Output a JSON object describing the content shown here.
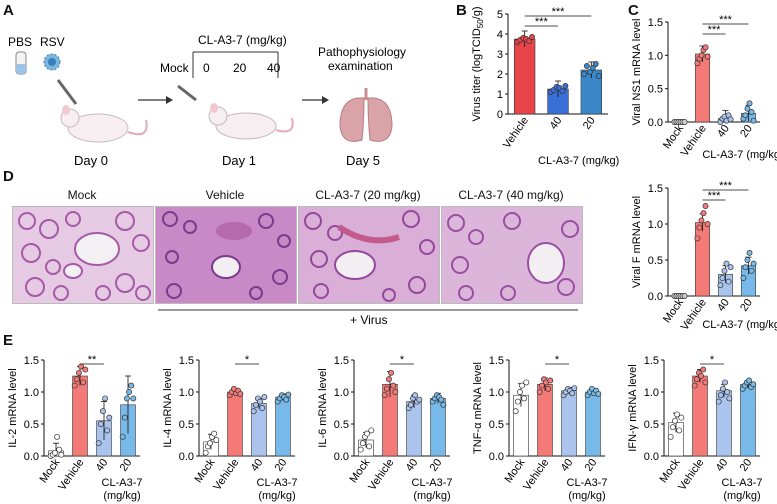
{
  "panels": {
    "A": "A",
    "B": "B",
    "C": "C",
    "D": "D",
    "E": "E"
  },
  "schematic": {
    "pbs": "PBS",
    "rsv": "RSV",
    "drug_dose": "CL-A3-7 (mg/kg)",
    "mock": "Mock",
    "dose_ticks": [
      "0",
      "20",
      "40"
    ],
    "exam": "Pathophysiology",
    "exam2": "examination",
    "day0": "Day 0",
    "day1": "Day 1",
    "day5": "Day 5"
  },
  "histology": {
    "titles": [
      "Mock",
      "Vehicle",
      "CL-A3-7 (20 mg/kg)",
      "CL-A3-7 (40 mg/kg)"
    ],
    "virus_label": "+ Virus"
  },
  "chart_data": [
    {
      "id": "B",
      "type": "bar",
      "categories": [
        "Vehicle",
        "40",
        "20"
      ],
      "xlabel": "CL-A3-7 (mg/kg)",
      "ylabel_main": "Virus titer (logTCID",
      "ylabel_sub": "50",
      "ylabel_end": "/g)",
      "ylim": [
        0,
        5
      ],
      "yticks": [
        "0",
        "1",
        "2",
        "3",
        "4",
        "5"
      ],
      "values": [
        3.75,
        1.25,
        2.2
      ],
      "points": [
        [
          3.6,
          3.7,
          3.8,
          3.75,
          3.65,
          3.85
        ],
        [
          1.1,
          1.2,
          1.35,
          1.3,
          1.15,
          1.4
        ],
        [
          2.0,
          2.4,
          2.1,
          2.3,
          2.5,
          1.9
        ]
      ],
      "colors": [
        "#e8454a",
        "#3b6fd8",
        "#3b88c8"
      ],
      "sig": [
        {
          "from": 0,
          "to": 1,
          "label": "***"
        },
        {
          "from": 0,
          "to": 2,
          "label": "***"
        }
      ]
    },
    {
      "id": "C",
      "type": "bar",
      "categories": [
        "Mock",
        "Vehicle",
        "40",
        "20"
      ],
      "xlabel": "CL-A3-7 (mg/kg)",
      "ylabel": "Viral NS1 mRNA level",
      "ylim": [
        0,
        1.5
      ],
      "yticks": [
        "0.0",
        "0.5",
        "1.0",
        "1.5"
      ],
      "values": [
        0.0,
        1.02,
        0.05,
        0.13
      ],
      "points": [
        [
          0,
          0,
          0,
          0,
          0,
          0
        ],
        [
          0.88,
          0.95,
          1.0,
          1.08,
          1.12,
          0.98
        ],
        [
          0.0,
          0.05,
          0.08,
          0.02,
          0.1,
          0.04
        ],
        [
          0.05,
          0.1,
          0.2,
          0.28,
          0.15,
          0.02
        ]
      ],
      "colors": [
        "#cccccc",
        "#f47a78",
        "#aac4ee",
        "#77b9e8"
      ],
      "sig": [
        {
          "from": 1,
          "to": 2,
          "label": "***"
        },
        {
          "from": 1,
          "to": 3,
          "label": "***"
        }
      ]
    },
    {
      "id": "Cb",
      "type": "bar",
      "categories": [
        "Mock",
        "Vehicle",
        "40",
        "20"
      ],
      "xlabel": "CL-A3-7 (mg/kg)",
      "ylabel": "Viral F mRNA level",
      "ylim": [
        0,
        1.5
      ],
      "yticks": [
        "0.0",
        "0.5",
        "1.0",
        "1.5"
      ],
      "values": [
        0.0,
        1.02,
        0.3,
        0.42
      ],
      "points": [
        [
          0,
          0,
          0,
          0,
          0,
          0
        ],
        [
          0.8,
          0.95,
          1.05,
          1.15,
          1.25,
          1.0
        ],
        [
          0.15,
          0.25,
          0.35,
          0.45,
          0.2,
          0.4
        ],
        [
          0.25,
          0.4,
          0.5,
          0.6,
          0.35,
          0.45
        ]
      ],
      "colors": [
        "#cccccc",
        "#f47a78",
        "#aac4ee",
        "#77b9e8"
      ],
      "sig": [
        {
          "from": 1,
          "to": 2,
          "label": "***"
        },
        {
          "from": 1,
          "to": 3,
          "label": "***"
        }
      ]
    },
    {
      "id": "E1",
      "type": "bar",
      "categories": [
        "Mock",
        "Vehicle",
        "40",
        "20"
      ],
      "xlabel": "CL-A3-7",
      "xlabel2": "(mg/kg)",
      "ylabel": "IL-2 mRNA level",
      "ylim": [
        0,
        1.5
      ],
      "yticks": [
        "0.0",
        "0.5",
        "1.0",
        "1.5"
      ],
      "values": [
        0.08,
        1.25,
        0.55,
        0.8
      ],
      "errors": [
        0.12,
        0.15,
        0.3,
        0.45
      ],
      "points": [
        [
          0.0,
          0.02,
          0.05,
          0.3,
          0.1,
          0.02
        ],
        [
          1.1,
          1.2,
          1.3,
          1.4,
          1.15,
          1.35
        ],
        [
          0.2,
          0.5,
          0.7,
          0.9,
          0.4,
          0.6
        ],
        [
          0.3,
          0.6,
          0.9,
          1.0,
          1.1,
          0.9
        ]
      ],
      "colors": [
        "#ffffff",
        "#f47a78",
        "#aac4ee",
        "#77b9e8"
      ],
      "sig": [
        {
          "from": 1,
          "to": 2,
          "label": "**"
        }
      ]
    },
    {
      "id": "E2",
      "type": "bar",
      "categories": [
        "Mock",
        "Vehicle",
        "40",
        "20"
      ],
      "xlabel": "CL-A3-7",
      "xlabel2": "(mg/kg)",
      "ylabel": "IL-4 mRNA level",
      "ylim": [
        0,
        1.5
      ],
      "yticks": [
        "0.0",
        "0.5",
        "1.0",
        "1.5"
      ],
      "values": [
        0.22,
        1.0,
        0.82,
        0.92
      ],
      "errors": [
        0.12,
        0.05,
        0.08,
        0.05
      ],
      "points": [
        [
          0.05,
          0.15,
          0.2,
          0.3,
          0.35,
          0.25
        ],
        [
          0.95,
          1.0,
          1.05,
          0.98,
          1.02,
          0.97
        ],
        [
          0.7,
          0.8,
          0.9,
          0.85,
          0.75,
          0.92
        ],
        [
          0.85,
          0.9,
          0.95,
          0.92,
          0.88,
          0.96
        ]
      ],
      "colors": [
        "#ffffff",
        "#f47a78",
        "#aac4ee",
        "#77b9e8"
      ],
      "sig": [
        {
          "from": 1,
          "to": 2,
          "label": "*"
        }
      ]
    },
    {
      "id": "E3",
      "type": "bar",
      "categories": [
        "Mock",
        "Vehicle",
        "40",
        "20"
      ],
      "xlabel": "CL-A3-7",
      "xlabel2": "(mg/kg)",
      "ylabel": "IL-6 mRNA level",
      "ylim": [
        0,
        1.5
      ],
      "yticks": [
        "0.0",
        "0.5",
        "1.0",
        "1.5"
      ],
      "values": [
        0.25,
        1.12,
        0.85,
        0.9
      ],
      "errors": [
        0.12,
        0.2,
        0.1,
        0.08
      ],
      "points": [
        [
          0.1,
          0.2,
          0.3,
          0.35,
          0.15,
          0.4
        ],
        [
          0.95,
          1.05,
          1.2,
          1.3,
          1.1,
          1.0
        ],
        [
          0.75,
          0.8,
          0.9,
          0.95,
          0.85,
          0.88
        ],
        [
          0.85,
          0.9,
          0.95,
          0.92,
          0.88,
          0.8
        ]
      ],
      "colors": [
        "#ffffff",
        "#f47a78",
        "#aac4ee",
        "#77b9e8"
      ],
      "sig": [
        {
          "from": 1,
          "to": 2,
          "label": "*"
        }
      ]
    },
    {
      "id": "E4",
      "type": "bar",
      "categories": [
        "Mock",
        "Vehicle",
        "40",
        "20"
      ],
      "xlabel": "CL-A3-7",
      "xlabel2": "(mg/kg)",
      "ylabel": "TNF-α mRNA level",
      "ylim": [
        0,
        1.5
      ],
      "yticks": [
        "0.0",
        "0.5",
        "1.0",
        "1.5"
      ],
      "values": [
        0.95,
        1.12,
        1.02,
        1.0
      ],
      "errors": [
        0.18,
        0.1,
        0.05,
        0.05
      ],
      "points": [
        [
          0.7,
          0.85,
          1.0,
          1.1,
          0.9,
          1.15
        ],
        [
          1.0,
          1.1,
          1.2,
          1.15,
          1.05,
          1.18
        ],
        [
          0.95,
          1.0,
          1.05,
          1.02,
          0.98,
          1.06
        ],
        [
          0.95,
          1.0,
          1.05,
          0.98,
          1.02,
          0.97
        ]
      ],
      "colors": [
        "#ffffff",
        "#f47a78",
        "#aac4ee",
        "#77b9e8"
      ],
      "sig": [
        {
          "from": 1,
          "to": 2,
          "label": "*"
        }
      ]
    },
    {
      "id": "E5",
      "type": "bar",
      "categories": [
        "Mock",
        "Vehicle",
        "40",
        "20"
      ],
      "xlabel": "CL-A3-7",
      "xlabel2": "(mg/kg)",
      "ylabel": "IFN-γ mRNA level",
      "ylim": [
        0,
        1.5
      ],
      "yticks": [
        "0.0",
        "0.5",
        "1.0",
        "1.5"
      ],
      "values": [
        0.52,
        1.25,
        1.02,
        1.12
      ],
      "errors": [
        0.15,
        0.1,
        0.1,
        0.06
      ],
      "points": [
        [
          0.3,
          0.45,
          0.55,
          0.65,
          0.4,
          0.6
        ],
        [
          1.1,
          1.2,
          1.3,
          1.25,
          1.35,
          1.15
        ],
        [
          0.85,
          0.95,
          1.05,
          1.15,
          1.0,
          0.9
        ],
        [
          1.05,
          1.1,
          1.15,
          1.18,
          1.08,
          1.12
        ]
      ],
      "colors": [
        "#ffffff",
        "#f47a78",
        "#aac4ee",
        "#77b9e8"
      ],
      "sig": [
        {
          "from": 1,
          "to": 2,
          "label": "*"
        }
      ]
    }
  ]
}
